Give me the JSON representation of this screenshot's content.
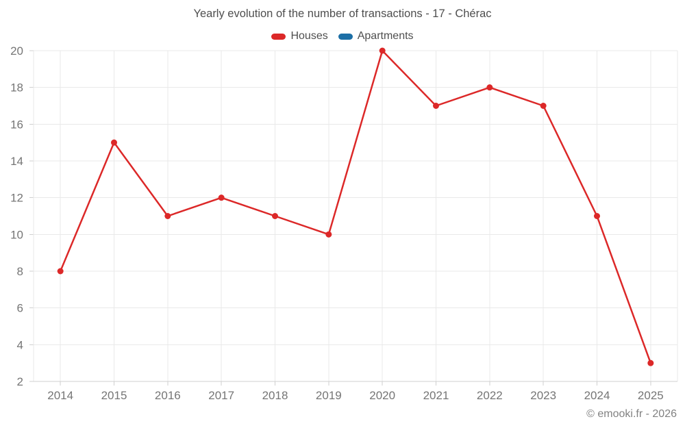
{
  "title": "Yearly evolution of the number of transactions - 17 - Chérac",
  "attribution": "© emooki.fr - 2026",
  "legend": {
    "items": [
      {
        "label": "Houses",
        "color": "#dc2828"
      },
      {
        "label": "Apartments",
        "color": "#1c6fa6"
      }
    ],
    "position": "top"
  },
  "chart_data": {
    "type": "line",
    "title": "Yearly evolution of the number of transactions - 17 - Chérac",
    "categories": [
      "2014",
      "2015",
      "2016",
      "2017",
      "2018",
      "2019",
      "2020",
      "2021",
      "2022",
      "2023",
      "2024",
      "2025"
    ],
    "series": [
      {
        "name": "Houses",
        "color": "#dc2828",
        "marker": "circle",
        "values": [
          8,
          15,
          11,
          12,
          11,
          10,
          20,
          17,
          18,
          17,
          11,
          3
        ]
      },
      {
        "name": "Apartments",
        "color": "#1c6fa6",
        "marker": "circle",
        "values": []
      }
    ],
    "xlabel": "",
    "ylabel": "",
    "ylim": [
      2,
      20
    ],
    "ytick_step": 2,
    "grid": true,
    "legend_position": "top"
  },
  "style": {
    "grid_color": "#e9e9e9",
    "axis_color": "#cfcfcf",
    "tick_label_color": "#757575",
    "title_color": "#4e4e4e",
    "attribution_color": "#818181",
    "background": "#ffffff"
  }
}
